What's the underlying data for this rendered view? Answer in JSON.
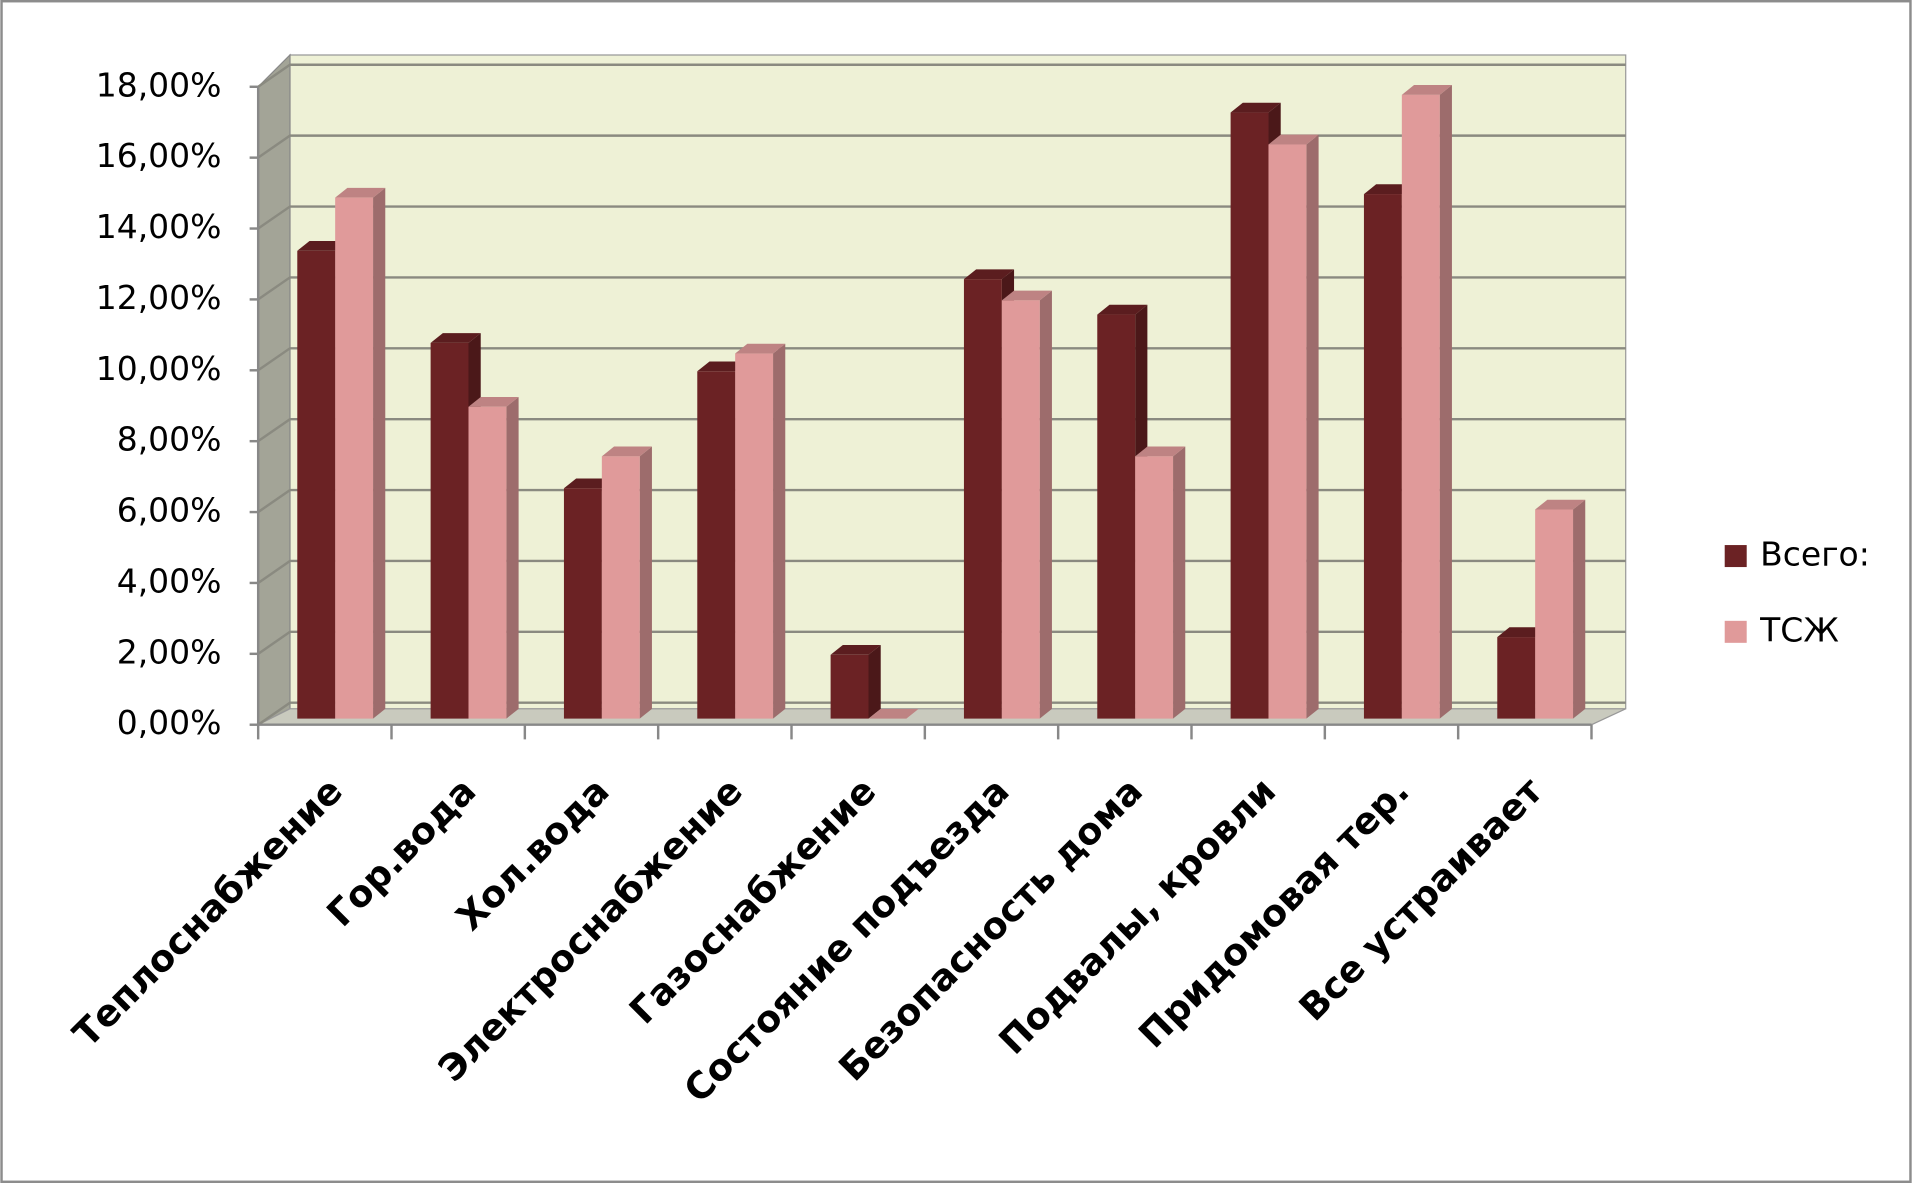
{
  "chart_data": {
    "type": "bar3d",
    "categories": [
      "Теплоснабжение",
      "Гор.вода",
      "Хол.вода",
      "Электроснабжение",
      "Газоснабжение",
      "Состояние подъезда",
      "Безопасность дома",
      "Подвалы, кровли",
      "Придомовая тер.",
      "Все устраивает"
    ],
    "series": [
      {
        "name": "Всего:",
        "color": "#6b2224",
        "values": [
          13.2,
          10.6,
          6.5,
          9.8,
          1.8,
          12.4,
          11.4,
          17.1,
          14.8,
          2.3
        ]
      },
      {
        "name": "ТСЖ",
        "color": "#e09a9a",
        "values": [
          14.7,
          8.8,
          7.4,
          10.3,
          0,
          11.8,
          7.4,
          16.2,
          17.6,
          5.9
        ]
      }
    ],
    "ylim": [
      0,
      18
    ],
    "yticks": [
      {
        "value": 0,
        "label": "0,00%"
      },
      {
        "value": 2,
        "label": "2,00%"
      },
      {
        "value": 4,
        "label": "4,00%"
      },
      {
        "value": 6,
        "label": "6,00%"
      },
      {
        "value": 8,
        "label": "8,00%"
      },
      {
        "value": 10,
        "label": "10,00%"
      },
      {
        "value": 12,
        "label": "12,00%"
      },
      {
        "value": 14,
        "label": "14,00%"
      },
      {
        "value": 16,
        "label": "16,00%"
      },
      {
        "value": 18,
        "label": "18,00%"
      }
    ],
    "grid": true,
    "legend": "right"
  }
}
